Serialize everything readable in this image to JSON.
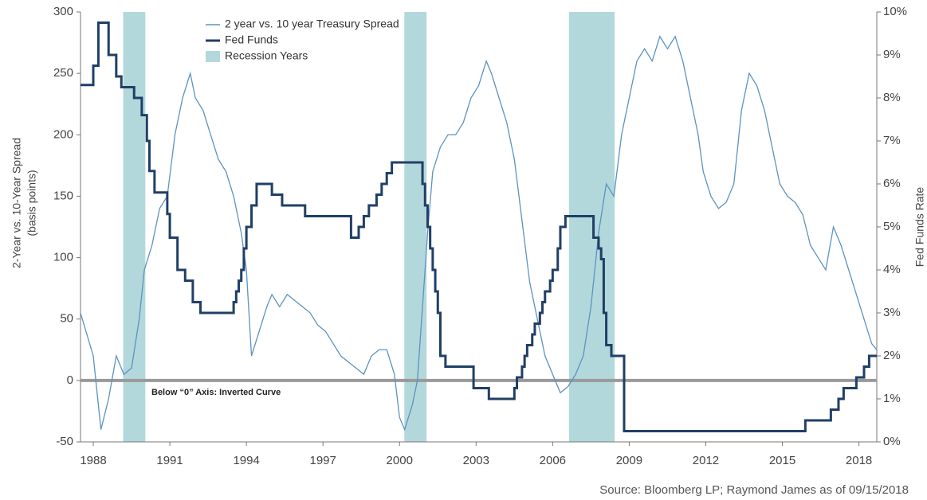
{
  "chart_data": {
    "type": "line",
    "ylabel": [
      "2-Year vs. 10-Year Spread",
      "(basis points)"
    ],
    "y2label": "Fed Funds Rate",
    "annotation": "Below “0” Axis: Inverted Curve",
    "source": "Source: Bloomberg LP; Raymond James as of 09/15/2018",
    "xlim": [
      1987.5,
      2018.7
    ],
    "xticks": [
      1988,
      1991,
      1994,
      1997,
      2000,
      2003,
      2006,
      2009,
      2012,
      2015,
      2018
    ],
    "ylim": [
      -50,
      300
    ],
    "yticks": [
      -50,
      0,
      50,
      100,
      150,
      200,
      250,
      300
    ],
    "y2lim": [
      0,
      10
    ],
    "y2ticks": [
      {
        "value": 0,
        "label": "0%"
      },
      {
        "value": 1,
        "label": "1%"
      },
      {
        "value": 2,
        "label": "2%"
      },
      {
        "value": 3,
        "label": "3%"
      },
      {
        "value": 4,
        "label": "4%"
      },
      {
        "value": 5,
        "label": "5%"
      },
      {
        "value": 6,
        "label": "6%"
      },
      {
        "value": 7,
        "label": "7%"
      },
      {
        "value": 8,
        "label": "8%"
      },
      {
        "value": 9,
        "label": "9%"
      },
      {
        "value": 10,
        "label": "10%"
      }
    ],
    "hline": 0,
    "bands": {
      "name": "Recession Years",
      "color": "#b3d8db",
      "ranges": [
        [
          1989.17,
          1990.04
        ],
        [
          2000.19,
          2001.06
        ],
        [
          2006.64,
          2008.43
        ]
      ]
    },
    "series": [
      {
        "name": "2 year vs. 10 year Treasury Spread",
        "color": "#5b93c0",
        "style": "line",
        "x": [
          1987.5,
          1988.0,
          1988.3,
          1988.6,
          1988.9,
          1989.2,
          1989.5,
          1989.8,
          1990.0,
          1990.3,
          1990.6,
          1990.9,
          1991.2,
          1991.5,
          1991.8,
          1992.0,
          1992.3,
          1992.6,
          1992.9,
          1993.2,
          1993.5,
          1993.8,
          1994.0,
          1994.2,
          1994.5,
          1994.8,
          1995.0,
          1995.3,
          1995.6,
          1995.9,
          1996.2,
          1996.5,
          1996.8,
          1997.1,
          1997.4,
          1997.7,
          1998.0,
          1998.3,
          1998.6,
          1998.9,
          1999.2,
          1999.5,
          1999.8,
          2000.0,
          2000.2,
          2000.5,
          2000.7,
          2000.9,
          2001.1,
          2001.3,
          2001.6,
          2001.9,
          2002.2,
          2002.5,
          2002.8,
          2003.1,
          2003.4,
          2003.6,
          2003.9,
          2004.2,
          2004.5,
          2004.8,
          2005.1,
          2005.4,
          2005.7,
          2006.0,
          2006.3,
          2006.6,
          2006.9,
          2007.2,
          2007.5,
          2007.8,
          2008.1,
          2008.4,
          2008.7,
          2009.0,
          2009.3,
          2009.6,
          2009.9,
          2010.2,
          2010.5,
          2010.8,
          2011.1,
          2011.4,
          2011.7,
          2011.9,
          2012.2,
          2012.5,
          2012.8,
          2013.1,
          2013.4,
          2013.7,
          2014.0,
          2014.3,
          2014.6,
          2014.9,
          2015.2,
          2015.5,
          2015.8,
          2016.1,
          2016.4,
          2016.7,
          2017.0,
          2017.3,
          2017.6,
          2017.9,
          2018.2,
          2018.5,
          2018.7
        ],
        "values": [
          55,
          20,
          -40,
          -15,
          20,
          5,
          10,
          50,
          90,
          110,
          140,
          150,
          200,
          230,
          250,
          230,
          220,
          200,
          180,
          170,
          150,
          120,
          90,
          20,
          40,
          60,
          70,
          60,
          70,
          65,
          60,
          55,
          45,
          40,
          30,
          20,
          15,
          10,
          5,
          20,
          25,
          25,
          5,
          -30,
          -40,
          -20,
          0,
          60,
          120,
          170,
          190,
          200,
          200,
          210,
          230,
          240,
          260,
          250,
          230,
          210,
          180,
          130,
          80,
          50,
          20,
          5,
          -10,
          -5,
          5,
          20,
          60,
          120,
          160,
          150,
          200,
          230,
          260,
          270,
          260,
          280,
          270,
          280,
          260,
          230,
          200,
          170,
          150,
          140,
          145,
          160,
          220,
          250,
          240,
          220,
          190,
          160,
          150,
          145,
          135,
          110,
          100,
          90,
          125,
          110,
          90,
          70,
          50,
          30,
          25
        ]
      },
      {
        "name": "Fed Funds",
        "color": "#1f3f66",
        "style": "step",
        "axis": "y2",
        "x": [
          1987.5,
          1988.0,
          1988.2,
          1988.6,
          1988.9,
          1989.1,
          1989.6,
          1989.9,
          1990.1,
          1990.2,
          1990.4,
          1990.9,
          1991.0,
          1991.3,
          1991.6,
          1991.9,
          1992.2,
          1993.5,
          1993.6,
          1993.7,
          1993.8,
          1993.9,
          1994.0,
          1994.2,
          1994.4,
          1995.0,
          1995.4,
          1996.3,
          1998.1,
          1998.4,
          1998.6,
          1998.8,
          1999.1,
          1999.3,
          1999.5,
          1999.7,
          2000.0,
          2000.9,
          2001.0,
          2001.1,
          2001.2,
          2001.3,
          2001.4,
          2001.5,
          2001.6,
          2001.8,
          2002.9,
          2003.5,
          2004.5,
          2004.6,
          2004.8,
          2004.9,
          2005.0,
          2005.2,
          2005.3,
          2005.5,
          2005.6,
          2005.7,
          2005.9,
          2006.0,
          2006.2,
          2006.3,
          2006.5,
          2007.6,
          2007.8,
          2007.9,
          2008.0,
          2008.1,
          2008.3,
          2008.8,
          2015.9,
          2016.9,
          2017.2,
          2017.4,
          2017.9,
          2018.2,
          2018.4,
          2018.7
        ],
        "values": [
          8.3,
          8.75,
          9.75,
          9.0,
          8.5,
          8.25,
          8.0,
          7.6,
          7.0,
          6.3,
          5.8,
          5.3,
          4.75,
          4.0,
          3.75,
          3.25,
          3.0,
          3.25,
          3.5,
          3.75,
          4.0,
          4.5,
          5.0,
          5.5,
          6.0,
          5.75,
          5.5,
          5.25,
          4.75,
          5.0,
          5.25,
          5.5,
          5.75,
          6.0,
          6.25,
          6.5,
          6.5,
          6.0,
          5.5,
          5.0,
          4.5,
          4.0,
          3.5,
          3.0,
          2.0,
          1.75,
          1.25,
          1.0,
          1.25,
          1.5,
          1.75,
          2.0,
          2.25,
          2.5,
          2.75,
          3.0,
          3.25,
          3.5,
          3.75,
          4.0,
          4.5,
          5.0,
          5.25,
          4.75,
          4.5,
          4.25,
          3.0,
          2.25,
          2.0,
          0.25,
          0.5,
          0.75,
          1.0,
          1.25,
          1.5,
          1.75,
          2.0,
          2.0
        ]
      }
    ]
  }
}
